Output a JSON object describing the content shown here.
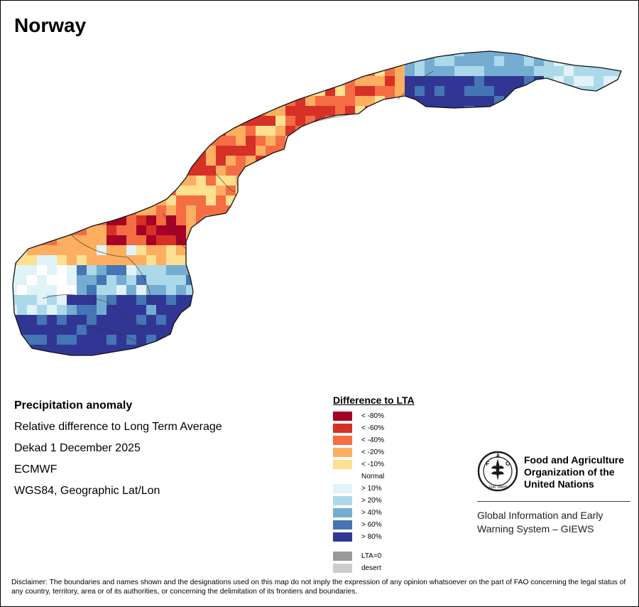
{
  "map": {
    "title": "Norway"
  },
  "info": {
    "heading": "Precipitation anomaly",
    "subtitle": "Relative difference to Long Term Average",
    "period": "Dekad 1 December 2025",
    "source": "ECMWF",
    "projection": "WGS84, Geographic Lat/Lon"
  },
  "legend": {
    "title": "Difference to LTA",
    "items": [
      {
        "label": "< -80%",
        "color": "#a50026"
      },
      {
        "label": "< -60%",
        "color": "#d73027"
      },
      {
        "label": "< -40%",
        "color": "#f46d43"
      },
      {
        "label": "< -20%",
        "color": "#fdae61"
      },
      {
        "label": "< -10%",
        "color": "#fee090"
      },
      {
        "label": "Normal",
        "color": "#ffffff"
      },
      {
        "label": "> 10%",
        "color": "#e0f3f8"
      },
      {
        "label": "> 20%",
        "color": "#abd9e9"
      },
      {
        "label": "> 40%",
        "color": "#74add1"
      },
      {
        "label": "> 60%",
        "color": "#4575b4"
      },
      {
        "label": "> 80%",
        "color": "#313695"
      }
    ],
    "extra": [
      {
        "label": "LTA=0",
        "color": "#999999"
      },
      {
        "label": "desert",
        "color": "#cccccc"
      }
    ]
  },
  "org": {
    "name_line1": "Food and Agriculture",
    "name_line2": "Organization of the",
    "name_line3": "United Nations",
    "logo_text": "FAO",
    "logo_motto": "FIAT PANIS",
    "system_line1": "Global Information and Early",
    "system_line2": "Warning System – GIEWS"
  },
  "disclaimer": "Disclaimer: The boundaries and names shown and the designations used on this map do not imply the expression of any opinion whatsoever on the part of FAO concerning the legal status of any country, territory, area or of its authorities, or concerning the delimitation of its frontiers and boundaries."
}
